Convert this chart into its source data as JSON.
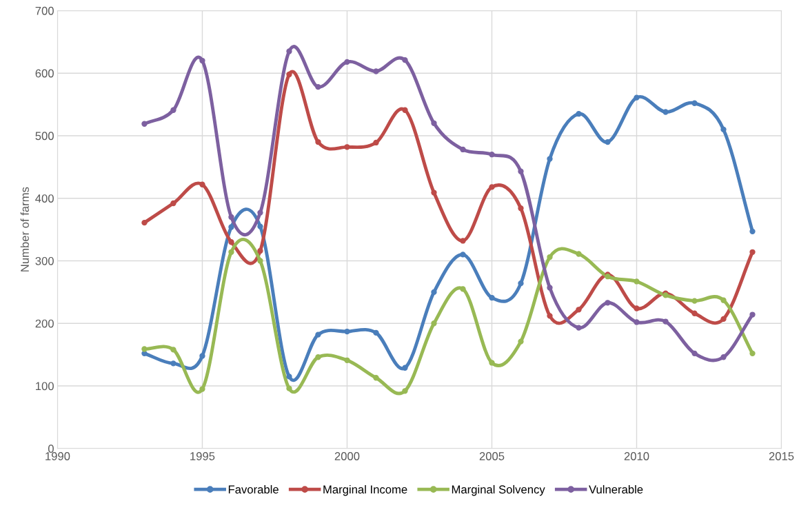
{
  "chart_data": {
    "type": "line",
    "ylabel": "Number of farms",
    "x": [
      1993,
      1994,
      1995,
      1996,
      1997,
      1998,
      1999,
      2000,
      2001,
      2002,
      2003,
      2004,
      2005,
      2006,
      2007,
      2008,
      2009,
      2010,
      2011,
      2012,
      2013,
      2014
    ],
    "series": [
      {
        "name": "Favorable",
        "color": "#4a7ebb",
        "values": [
          152,
          136,
          148,
          354,
          355,
          115,
          182,
          187,
          185,
          129,
          250,
          310,
          241,
          264,
          463,
          535,
          490,
          561,
          538,
          552,
          510,
          347
        ]
      },
      {
        "name": "Marginal Income",
        "color": "#be4b48",
        "values": [
          361,
          392,
          422,
          330,
          316,
          598,
          490,
          482,
          489,
          541,
          409,
          332,
          418,
          384,
          212,
          222,
          278,
          224,
          248,
          216,
          207,
          314
        ]
      },
      {
        "name": "Marginal Solvency",
        "color": "#98b954",
        "values": [
          159,
          158,
          95,
          314,
          300,
          96,
          146,
          141,
          113,
          92,
          200,
          255,
          137,
          171,
          306,
          311,
          275,
          267,
          245,
          236,
          237,
          152
        ]
      },
      {
        "name": "Vulnerable",
        "color": "#7d60a0",
        "values": [
          519,
          541,
          620,
          370,
          377,
          635,
          578,
          618,
          603,
          621,
          520,
          478,
          470,
          443,
          257,
          193,
          233,
          202,
          203,
          152,
          146,
          214
        ]
      }
    ],
    "xlim": [
      1990,
      2015
    ],
    "xticks": [
      1990,
      1995,
      2000,
      2005,
      2010,
      2015
    ],
    "ylim": [
      0,
      700
    ],
    "yticks": [
      0,
      100,
      200,
      300,
      400,
      500,
      600,
      700
    ],
    "grid": true,
    "legend": "bottom",
    "marker": "circle",
    "line_style": "solid"
  }
}
